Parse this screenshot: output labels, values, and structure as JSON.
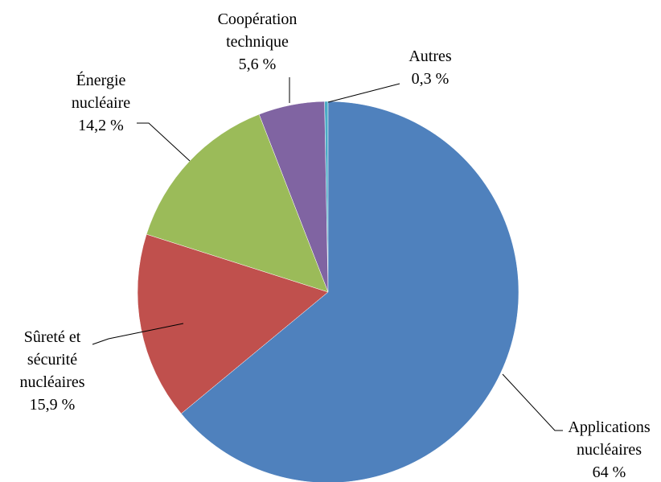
{
  "chart_data": {
    "type": "pie",
    "categories": [
      "Applications nucléaires",
      "Sûreté et sécurité nucléaires",
      "Énergie nucléaire",
      "Coopération technique",
      "Autres"
    ],
    "values": [
      64,
      15.9,
      14.2,
      5.6,
      0.3
    ],
    "value_labels": [
      "64 %",
      "15,9 %",
      "14,2 %",
      "5,6 %",
      "0,3 %"
    ],
    "colors": [
      "#4f81bd",
      "#c0504d",
      "#9bbb59",
      "#8064a2",
      "#4bacc6"
    ]
  }
}
